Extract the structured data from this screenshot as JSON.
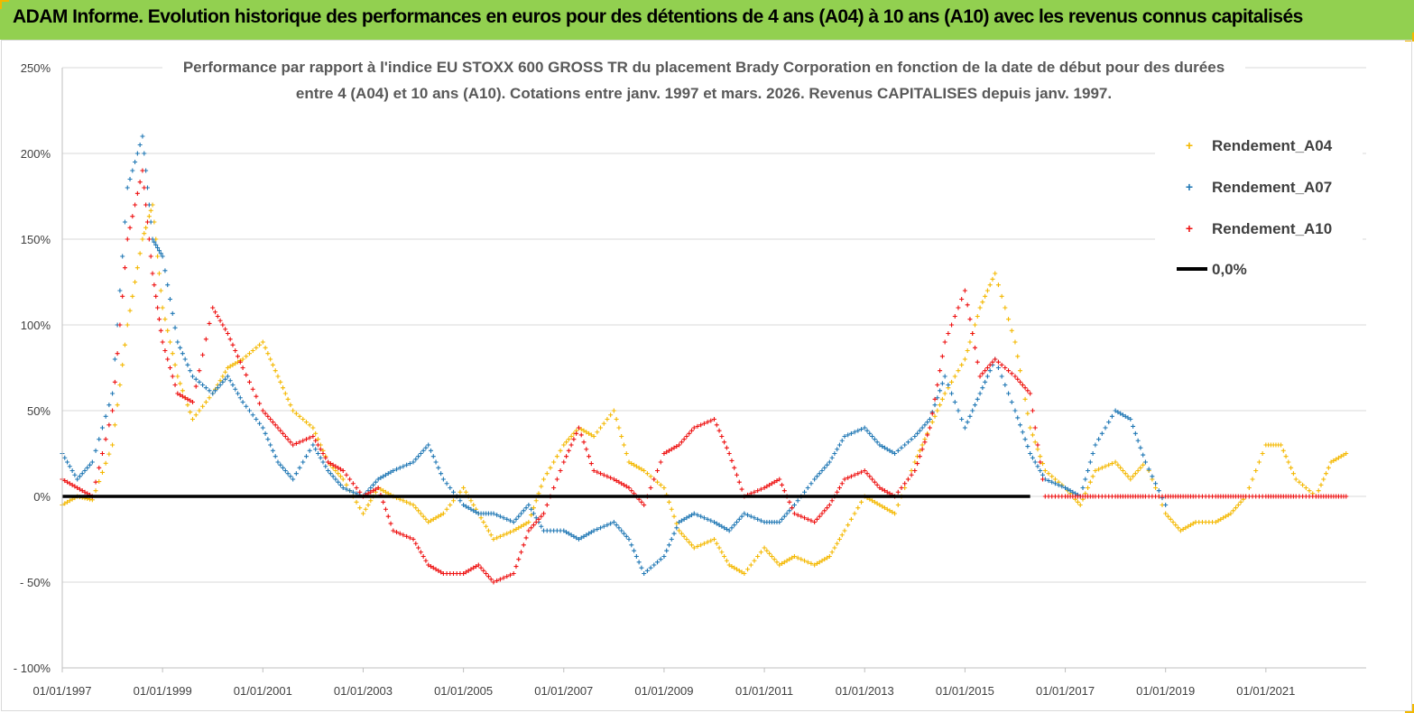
{
  "header": {
    "title": "ADAM Informe. Evolution historique des performances en euros pour des détentions de 4 ans (A04) à 10 ans (A10) avec les revenus connus capitalisés"
  },
  "colors": {
    "header_bg": "#92d050",
    "corner": "#f2b800",
    "a04": "#f4b800",
    "a07": "#1f77b4",
    "a10": "#ee1111",
    "zero": "#000000",
    "grid": "#d9d9d9"
  },
  "chart_data": {
    "type": "scatter",
    "title_lines": [
      "Performance par rapport à l'indice EU STOXX 600 GROSS TR  du placement Brady Corporation en fonction de la date de début pour des durées",
      "entre 4 (A04) et 10 ans (A10). Cotations entre janv. 1997 et mars. 2026. Revenus CAPITALISES depuis janv. 1997."
    ],
    "xlabel": "",
    "ylabel": "",
    "x_range": [
      "1997-01-01",
      "2023-01-01"
    ],
    "ylim": [
      -100,
      250
    ],
    "y_ticks": [
      {
        "v": 250,
        "label": "250%"
      },
      {
        "v": 200,
        "label": "200%"
      },
      {
        "v": 150,
        "label": "150%"
      },
      {
        "v": 100,
        "label": "100%"
      },
      {
        "v": 50,
        "label": "50%"
      },
      {
        "v": 0,
        "label": "0%"
      },
      {
        "v": -50,
        "label": "- 50%"
      },
      {
        "v": -100,
        "label": "- 100%"
      }
    ],
    "x_ticks": [
      "01/01/1997",
      "01/01/1999",
      "01/01/2001",
      "01/01/2003",
      "01/01/2005",
      "01/01/2007",
      "01/01/2009",
      "01/01/2011",
      "01/01/2013",
      "01/01/2015",
      "01/01/2017",
      "01/01/2019",
      "01/01/2021"
    ],
    "grid": "horizontal",
    "legend_position": "top-right",
    "legend": [
      {
        "label": "Rendement_A04",
        "key": "a04",
        "marker": "+"
      },
      {
        "label": "Rendement_A07",
        "key": "a07",
        "marker": "+"
      },
      {
        "label": "Rendement_A10",
        "key": "a10",
        "marker": "+"
      },
      {
        "label": "0,0%",
        "key": "zero",
        "marker": "line"
      }
    ],
    "series": [
      {
        "name": "Rendement_A04",
        "key": "a04",
        "x": [
          1997.0,
          1997.3,
          1997.6,
          1998.0,
          1998.3,
          1998.6,
          1998.8,
          1999.0,
          1999.3,
          1999.6,
          2000.0,
          2000.3,
          2000.6,
          2001.0,
          2001.3,
          2001.6,
          2002.0,
          2002.3,
          2002.6,
          2003.0,
          2003.3,
          2003.6,
          2004.0,
          2004.3,
          2004.6,
          2005.0,
          2005.3,
          2005.6,
          2006.0,
          2006.3,
          2006.6,
          2007.0,
          2007.3,
          2007.6,
          2008.0,
          2008.3,
          2008.6,
          2009.0,
          2009.3,
          2009.6,
          2010.0,
          2010.3,
          2010.6,
          2011.0,
          2011.3,
          2011.6,
          2012.0,
          2012.3,
          2012.6,
          2013.0,
          2013.3,
          2013.6,
          2014.0,
          2014.3,
          2014.6,
          2015.0,
          2015.3,
          2015.6,
          2016.0,
          2016.3,
          2016.6,
          2017.0,
          2017.3,
          2017.6,
          2018.0,
          2018.3,
          2018.6,
          2019.0,
          2019.3,
          2019.6,
          2020.0,
          2020.3,
          2020.6,
          2021.0,
          2021.3,
          2021.6,
          2022.0,
          2022.3,
          2022.6
        ],
        "values": [
          -5,
          0,
          -2,
          30,
          100,
          150,
          170,
          110,
          70,
          45,
          60,
          75,
          80,
          90,
          70,
          50,
          40,
          20,
          10,
          -10,
          5,
          0,
          -5,
          -15,
          -10,
          5,
          -10,
          -25,
          -20,
          -15,
          10,
          30,
          40,
          35,
          50,
          20,
          15,
          5,
          -20,
          -30,
          -25,
          -40,
          -45,
          -30,
          -40,
          -35,
          -40,
          -35,
          -20,
          0,
          -5,
          -10,
          20,
          40,
          60,
          80,
          110,
          130,
          90,
          40,
          15,
          5,
          -5,
          15,
          20,
          10,
          20,
          -10,
          -20,
          -15,
          -15,
          -10,
          0,
          30,
          30,
          10,
          0,
          20,
          25
        ]
      },
      {
        "name": "Rendement_A07",
        "key": "a07",
        "x": [
          1997.0,
          1997.3,
          1997.6,
          1998.0,
          1998.3,
          1998.6,
          1998.8,
          1999.0,
          1999.3,
          1999.6,
          2000.0,
          2000.3,
          2000.6,
          2001.0,
          2001.3,
          2001.6,
          2002.0,
          2002.3,
          2002.6,
          2003.0,
          2003.3,
          2003.6,
          2004.0,
          2004.3,
          2004.6,
          2005.0,
          2005.3,
          2005.6,
          2006.0,
          2006.3,
          2006.6,
          2007.0,
          2007.3,
          2007.6,
          2008.0,
          2008.3,
          2008.6,
          2009.0,
          2009.3,
          2009.6,
          2010.0,
          2010.3,
          2010.6,
          2011.0,
          2011.3,
          2011.6,
          2012.0,
          2012.3,
          2012.6,
          2013.0,
          2013.3,
          2013.6,
          2014.0,
          2014.3,
          2014.6,
          2015.0,
          2015.3,
          2015.6,
          2016.0,
          2016.3,
          2016.6,
          2017.0,
          2017.3,
          2017.6,
          2018.0,
          2018.3,
          2018.6,
          2019.0
        ],
        "values": [
          25,
          10,
          20,
          60,
          180,
          210,
          150,
          140,
          90,
          70,
          60,
          70,
          55,
          40,
          20,
          10,
          30,
          15,
          5,
          0,
          10,
          15,
          20,
          30,
          10,
          -5,
          -10,
          -10,
          -15,
          -5,
          -20,
          -20,
          -25,
          -20,
          -15,
          -25,
          -45,
          -35,
          -15,
          -10,
          -15,
          -20,
          -10,
          -15,
          -15,
          -5,
          10,
          20,
          35,
          40,
          30,
          25,
          35,
          45,
          70,
          40,
          60,
          80,
          50,
          25,
          10,
          5,
          0,
          30,
          50,
          45,
          20,
          -5
        ]
      },
      {
        "name": "Rendement_A10",
        "key": "a10",
        "x": [
          1997.0,
          1997.3,
          1997.6,
          1998.0,
          1998.3,
          1998.6,
          1998.8,
          1999.0,
          1999.3,
          1999.6,
          2000.0,
          2000.3,
          2000.6,
          2001.0,
          2001.3,
          2001.6,
          2002.0,
          2002.3,
          2002.6,
          2003.0,
          2003.3,
          2003.6,
          2004.0,
          2004.3,
          2004.6,
          2005.0,
          2005.3,
          2005.6,
          2006.0,
          2006.3,
          2006.6,
          2007.0,
          2007.3,
          2007.6,
          2008.0,
          2008.3,
          2008.6,
          2009.0,
          2009.3,
          2009.6,
          2010.0,
          2010.3,
          2010.6,
          2011.0,
          2011.3,
          2011.6,
          2012.0,
          2012.3,
          2012.6,
          2013.0,
          2013.3,
          2013.6,
          2014.0,
          2014.3,
          2014.6,
          2015.0,
          2015.3,
          2015.6,
          2016.0,
          2016.3,
          2016.6,
          2017.0,
          2017.3,
          2017.6,
          2018.0,
          2018.3,
          2018.6,
          2019.0,
          2019.3,
          2019.6,
          2020.0,
          2020.3,
          2020.6,
          2021.0,
          2021.3,
          2021.6,
          2022.0,
          2022.3,
          2022.6
        ],
        "values": [
          10,
          5,
          0,
          50,
          150,
          190,
          130,
          90,
          60,
          55,
          110,
          95,
          75,
          50,
          40,
          30,
          35,
          20,
          15,
          0,
          5,
          -20,
          -25,
          -40,
          -45,
          -45,
          -40,
          -50,
          -45,
          -20,
          -10,
          20,
          40,
          15,
          10,
          5,
          -5,
          25,
          30,
          40,
          45,
          25,
          0,
          5,
          10,
          -10,
          -15,
          -5,
          10,
          15,
          5,
          0,
          15,
          40,
          90,
          120,
          70,
          80,
          70,
          60,
          0,
          0,
          0,
          0,
          0,
          0,
          0,
          0,
          0,
          0,
          0,
          0,
          0,
          0,
          0,
          0,
          0,
          0,
          0
        ]
      }
    ],
    "zero_line": {
      "label": "0,0%",
      "value": 0
    }
  }
}
